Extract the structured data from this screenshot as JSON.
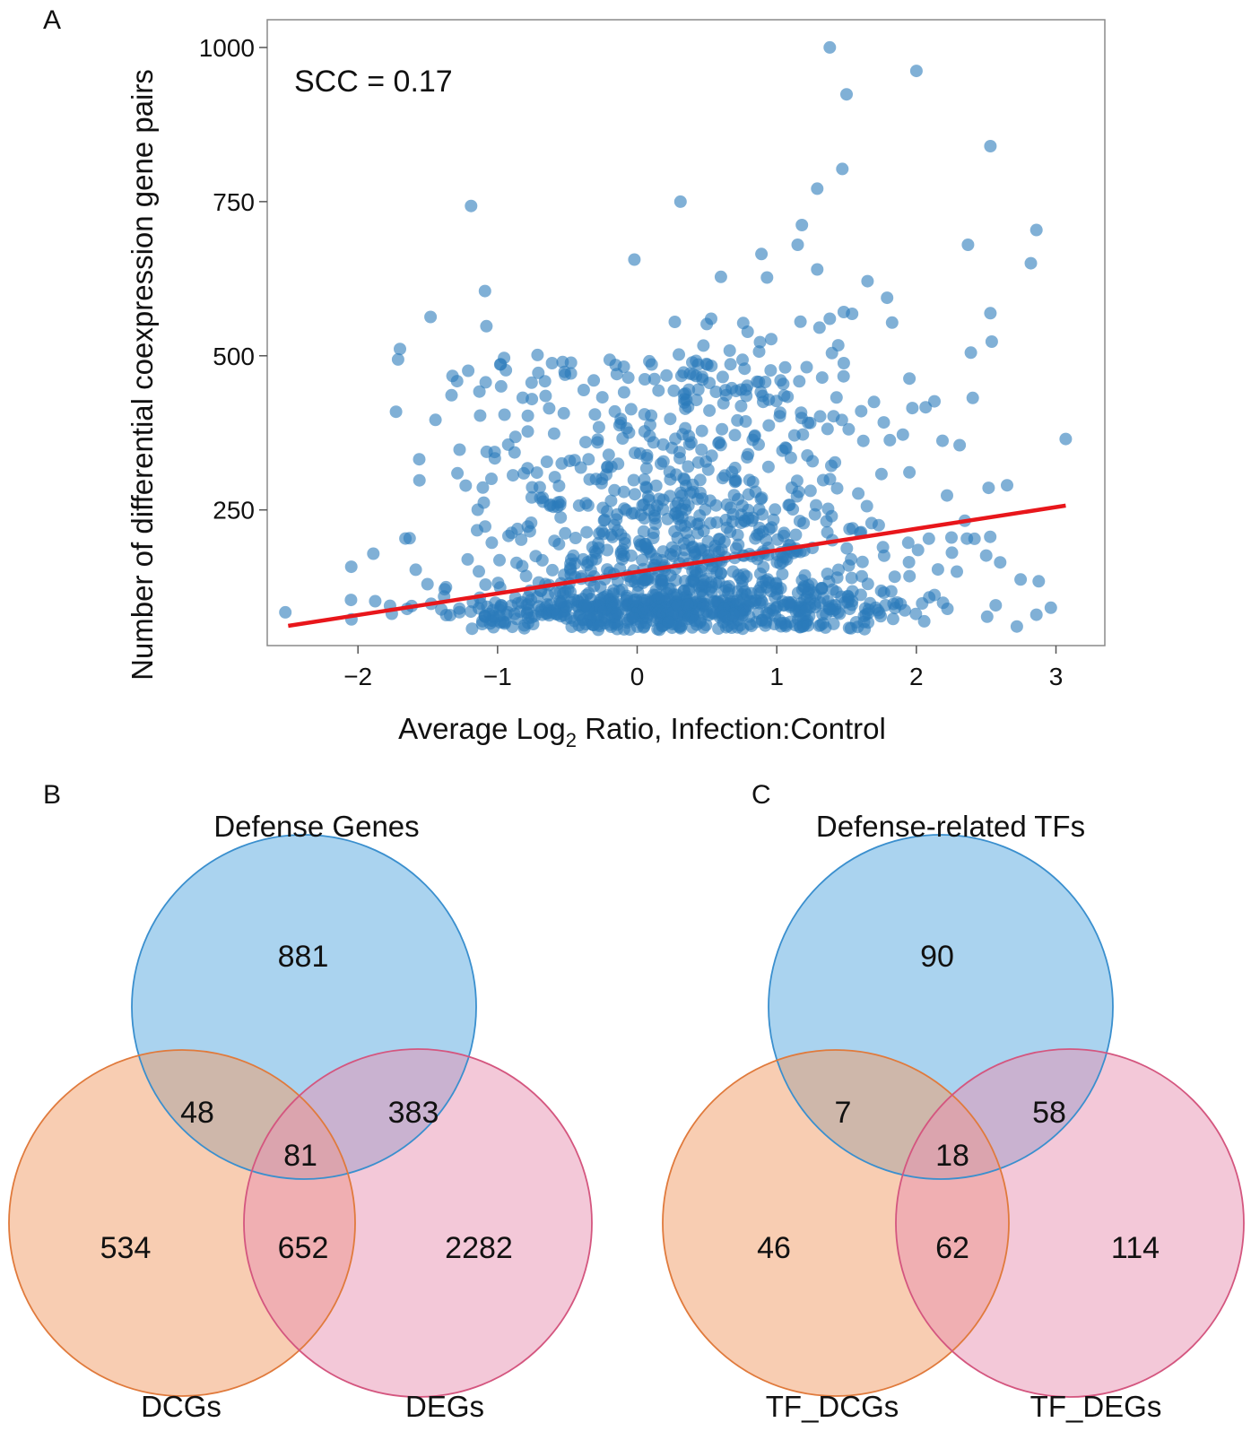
{
  "panel_a": {
    "label": "A",
    "annotation": "SCC = 0.17",
    "chart_data": {
      "type": "scatter",
      "title": "",
      "xlabel_prefix": "Average Log",
      "xlabel_sub": "2",
      "xlabel_suffix": " Ratio, Infection:Control",
      "ylabel": "Number of differential coexpression gene pairs",
      "xlim": [
        -2.65,
        3.35
      ],
      "ylim": [
        30,
        1045
      ],
      "xticks": [
        -2,
        -1,
        0,
        1,
        2,
        3
      ],
      "xtick_labels": [
        "−2",
        "−1",
        "0",
        "1",
        "2",
        "3"
      ],
      "yticks": [
        250,
        500,
        750,
        1000
      ],
      "ytick_labels": [
        "250",
        "500",
        "750",
        "1000"
      ],
      "point_color": "#2b7bba",
      "fit_color": "#e8161b",
      "fit_line": {
        "x": [
          -2.5,
          3.07
        ],
        "y": [
          62,
          257
        ]
      },
      "highlighted_points": [
        {
          "x": 1.38,
          "y": 1000
        },
        {
          "x": 2.0,
          "y": 962
        },
        {
          "x": 1.5,
          "y": 924
        },
        {
          "x": 2.53,
          "y": 840
        },
        {
          "x": 1.47,
          "y": 803
        },
        {
          "x": 1.29,
          "y": 771
        },
        {
          "x": -1.19,
          "y": 743
        },
        {
          "x": 0.31,
          "y": 750
        },
        {
          "x": 2.86,
          "y": 704
        },
        {
          "x": 1.18,
          "y": 712
        },
        {
          "x": 2.37,
          "y": 680
        },
        {
          "x": 2.82,
          "y": 650
        },
        {
          "x": -0.02,
          "y": 656
        },
        {
          "x": 0.89,
          "y": 665
        },
        {
          "x": 1.15,
          "y": 680
        },
        {
          "x": 1.29,
          "y": 640
        },
        {
          "x": 0.6,
          "y": 628
        },
        {
          "x": 0.93,
          "y": 627
        },
        {
          "x": -1.09,
          "y": 605
        },
        {
          "x": 1.65,
          "y": 621
        },
        {
          "x": 1.79,
          "y": 594
        },
        {
          "x": 2.53,
          "y": 569
        },
        {
          "x": 2.54,
          "y": 523
        },
        {
          "x": 2.39,
          "y": 505
        },
        {
          "x": -1.48,
          "y": 563
        },
        {
          "x": -1.08,
          "y": 548
        },
        {
          "x": 0.27,
          "y": 555
        },
        {
          "x": 0.53,
          "y": 560
        },
        {
          "x": 0.76,
          "y": 553
        },
        {
          "x": 1.48,
          "y": 571
        },
        {
          "x": 1.54,
          "y": 568
        },
        {
          "x": 1.38,
          "y": 560
        },
        {
          "x": 0.96,
          "y": 527
        },
        {
          "x": 1.44,
          "y": 517
        },
        {
          "x": -0.61,
          "y": 488
        },
        {
          "x": -0.52,
          "y": 474
        },
        {
          "x": 0.21,
          "y": 468
        },
        {
          "x": 1.48,
          "y": 488
        },
        {
          "x": 3.07,
          "y": 365
        },
        {
          "x": 2.31,
          "y": 355
        },
        {
          "x": 2.65,
          "y": 290
        },
        {
          "x": -1.56,
          "y": 298
        },
        {
          "x": -1.33,
          "y": 436
        },
        {
          "x": -1.13,
          "y": 442
        },
        {
          "x": -0.82,
          "y": 432
        },
        {
          "x": 0.1,
          "y": 403
        },
        {
          "x": 0.78,
          "y": 445
        },
        {
          "x": 1.62,
          "y": 362
        },
        {
          "x": 1.95,
          "y": 311
        },
        {
          "x": -2.52,
          "y": 84
        },
        {
          "x": -2.05,
          "y": 104
        },
        {
          "x": -1.89,
          "y": 179
        },
        {
          "x": -1.63,
          "y": 204
        },
        {
          "x": 2.72,
          "y": 61
        },
        {
          "x": 2.86,
          "y": 80
        },
        {
          "x": 2.5,
          "y": 176
        },
        {
          "x": 2.6,
          "y": 165
        },
        {
          "x": 2.29,
          "y": 150
        },
        {
          "x": 2.13,
          "y": 112
        },
        {
          "x": 1.82,
          "y": 118
        }
      ]
    }
  },
  "panel_b": {
    "label": "B",
    "chart_data": {
      "type": "venn",
      "sets": [
        {
          "name": "Defense Genes",
          "color": "#55a8e0",
          "stroke": "#3a8fce"
        },
        {
          "name": "DCGs",
          "color": "#f29b66",
          "stroke": "#e07a3c"
        },
        {
          "name": "DEGs",
          "color": "#e892b2",
          "stroke": "#d4567f"
        }
      ],
      "regions": {
        "a_only": 881,
        "b_only": 534,
        "c_only": 2282,
        "ab": 48,
        "ac": 383,
        "bc": 652,
        "abc": 81
      }
    },
    "labels": {
      "top": "Defense Genes",
      "left": "DCGs",
      "right": "DEGs",
      "a_only": "881",
      "b_only": "534",
      "c_only": "2282",
      "ab": "48",
      "ac": "383",
      "bc": "652",
      "abc": "81"
    }
  },
  "panel_c": {
    "label": "C",
    "chart_data": {
      "type": "venn",
      "sets": [
        {
          "name": "Defense-related TFs",
          "color": "#55a8e0",
          "stroke": "#3a8fce"
        },
        {
          "name": "TF_DCGs",
          "color": "#f29b66",
          "stroke": "#e07a3c"
        },
        {
          "name": "TF_DEGs",
          "color": "#e892b2",
          "stroke": "#d4567f"
        }
      ],
      "regions": {
        "a_only": 90,
        "b_only": 46,
        "c_only": 114,
        "ab": 7,
        "ac": 58,
        "bc": 62,
        "abc": 18
      }
    },
    "labels": {
      "top": "Defense-related TFs",
      "left": "TF_DCGs",
      "right": "TF_DEGs",
      "a_only": "90",
      "b_only": "46",
      "c_only": "114",
      "ab": "7",
      "ac": "58",
      "bc": "62",
      "abc": "18"
    }
  }
}
